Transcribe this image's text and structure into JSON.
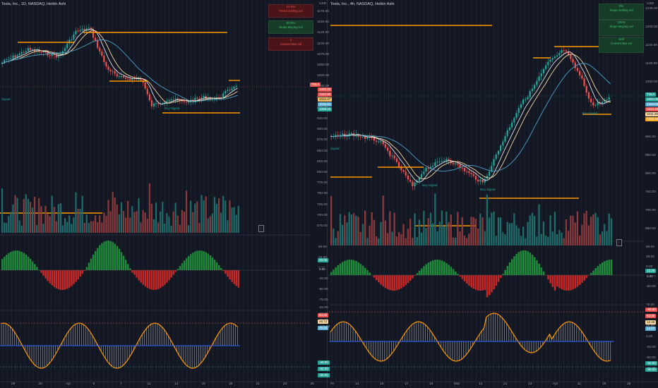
{
  "colors": {
    "bg": "#131722",
    "grid": "#1e2230",
    "up": "#26a69a",
    "down": "#ef5350",
    "orange": "#ff9800",
    "white": "#e0e3eb",
    "yellow": "#f7d9a0",
    "teal": "#4aa3c9",
    "vol_up": "#1f6d6a",
    "vol_down": "#8c3a3d"
  },
  "left": {
    "title": "Tesla, Inc., 1D, NASDAQ, Heikin Ashi",
    "currency": "USD",
    "status": [
      {
        "top": "12.5%",
        "bottom": "Trend Selling vol",
        "kind": "red"
      },
      {
        "top": "80.5%",
        "bottom": "Slope Buying vol",
        "kind": "green"
      },
      {
        "top": "1",
        "bottom": "Current Bar vol",
        "kind": "red"
      }
    ],
    "price_axis": [
      "1175.00",
      "1150.00",
      "1125.00",
      "1100.00",
      "1075.00",
      "1050.00",
      "1025.00",
      "1000.00",
      "975.00",
      "950.00",
      "925.00",
      "900.00",
      "875.00",
      "850.00",
      "825.00",
      "800.00",
      "775.00",
      "750.00",
      "725.00",
      "700.00",
      "675.00"
    ],
    "tags": [
      {
        "text": "TSLA",
        "color": "#ef5350"
      },
      {
        "text": "1020.20",
        "color": "#ef5350"
      },
      {
        "text": "1024.90",
        "color": "#ef5350"
      },
      {
        "text": "1022.47",
        "color": "#f5c26b"
      },
      {
        "text": "1016.62",
        "color": "#5aaed5"
      },
      {
        "text": "1008.20",
        "color": "#26a69a"
      }
    ],
    "osc1_axis": [
      "50.00",
      "25.00",
      "0.00",
      "-25.00",
      "-50.00",
      "-75.00"
    ],
    "osc1_tags": [
      {
        "text": "20.06",
        "color": "#26a69a"
      },
      {
        "text": "0.00",
        "color": "#131722"
      }
    ],
    "osc2_axis": [
      "-25.00",
      "-50.00",
      "-75.00",
      "-100.00"
    ],
    "osc2_tags": [
      {
        "text": "53.00",
        "color": "#ef5350"
      },
      {
        "text": "48.72",
        "color": "#f7d9a0"
      },
      {
        "text": "45.55",
        "color": "#5aaed5"
      },
      {
        "text": "-40.00",
        "color": "#26a69a"
      },
      {
        "text": "-52.00",
        "color": "#26a69a"
      },
      {
        "text": "-60.00",
        "color": "#26a69a"
      }
    ],
    "time_axis": [
      "29",
      "30",
      "Apr",
      "5",
      "7",
      "11",
      "13",
      "15",
      "19",
      "21",
      "23",
      "25"
    ],
    "signals": [
      "Signal",
      "Buy Signal"
    ]
  },
  "right": {
    "title": "Tesla, Inc., 4h, NASDAQ, Heikin Ashi",
    "currency": "USD",
    "status": [
      {
        "top": "0%",
        "bottom": "Slope Selling vol",
        "kind": "green"
      },
      {
        "top": "100%",
        "bottom": "Slope Buying vol",
        "kind": "green"
      },
      {
        "top": "Sell",
        "bottom": "Current Bar vol",
        "kind": "green"
      }
    ],
    "price_axis": [
      "1225.00",
      "1200.00",
      "1150.00",
      "1100.00",
      "1050.00",
      "1000.00",
      "950.00",
      "900.00",
      "850.00",
      "800.00",
      "750.00",
      "700.00",
      "650.00"
    ],
    "tags": [
      {
        "text": "TSLA",
        "color": "#26a69a"
      },
      {
        "text": "1022.00",
        "color": "#26a69a"
      },
      {
        "text": "1020.00",
        "color": "#5aaed5"
      },
      {
        "text": "1013.43",
        "color": "#ef5350"
      },
      {
        "text": "1011.28",
        "color": "#f7d9a0"
      },
      {
        "text": "1008.23",
        "color": "#f5a623"
      }
    ],
    "osc1_axis": [
      "50.00",
      "25.00",
      "0.00",
      "-25.00",
      "-50.00"
    ],
    "osc1_tags": [
      {
        "text": "12.26",
        "color": "#26a69a"
      },
      {
        "text": "0.00",
        "color": "#131722"
      }
    ],
    "osc2_axis": [
      "75.00",
      "50.00",
      "25.00",
      "0.00",
      "-25.00",
      "-50.00",
      "-75.00"
    ],
    "osc2_tags": [
      {
        "text": "-60.00",
        "color": "#ef5350"
      },
      {
        "text": "53.00",
        "color": "#ef5350"
      },
      {
        "text": "12.48",
        "color": "#f7d9a0"
      },
      {
        "text": "14.27",
        "color": "#5aaed5"
      },
      {
        "text": "-52.00",
        "color": "#26a69a"
      },
      {
        "text": "-60.00",
        "color": "#26a69a"
      }
    ],
    "time_axis": [
      "Fe",
      "14",
      "16",
      "17",
      "18",
      "Mar",
      "14",
      "21",
      "23",
      "Apr",
      "11",
      "18",
      "25"
    ],
    "signals": [
      "Signal",
      "Buy Signal",
      "Buy Signal",
      "Buy Signal"
    ]
  }
}
